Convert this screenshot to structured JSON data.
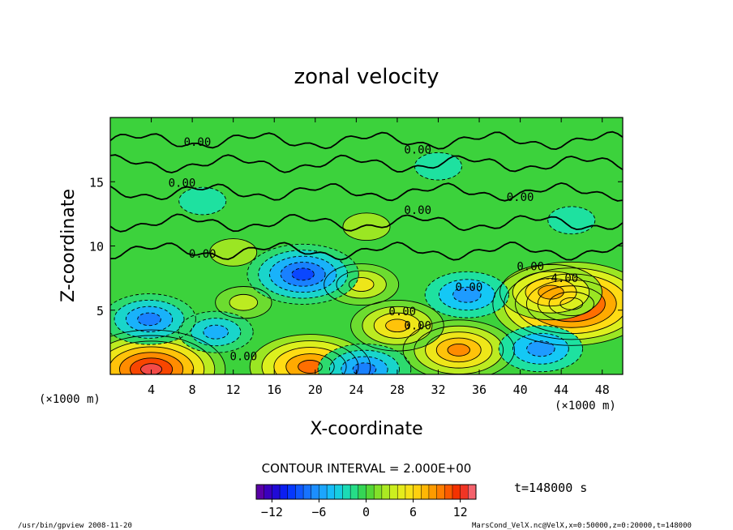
{
  "chart_data": {
    "type": "heatmap",
    "title": "zonal velocity",
    "xlabel": "X-coordinate",
    "ylabel": "Z-coordinate",
    "x_unit": "(×1000 m)",
    "y_unit": "(×1000 m)",
    "xlim": [
      0,
      50
    ],
    "ylim": [
      0,
      20
    ],
    "x_ticks": [
      "4",
      "8",
      "12",
      "16",
      "20",
      "24",
      "28",
      "32",
      "36",
      "40",
      "44",
      "48"
    ],
    "y_ticks": [
      "5",
      "10",
      "15"
    ],
    "contour_interval_text": "CONTOUR INTERVAL = 2.000E+00",
    "contour_labels": [
      "0.00",
      "0.00",
      "0.00",
      "0.00",
      "0.00",
      "0.00",
      "0.00",
      "0.00",
      "0.00",
      "0.00",
      "0.00",
      "-4.00"
    ],
    "time_label": "t=148000 s",
    "colorbar": {
      "range": [
        -14,
        14
      ],
      "tick_values": [
        -12,
        -6,
        0,
        6,
        12
      ],
      "tick_labels": [
        "−12",
        "−6",
        "0",
        "6",
        "12"
      ]
    },
    "features": [
      {
        "x": 4,
        "z": 0.4,
        "value": 13
      },
      {
        "x": 19.5,
        "z": 0.6,
        "value": 10
      },
      {
        "x": 45,
        "z": 5.5,
        "value": 14
      },
      {
        "x": 43,
        "z": 6.4,
        "value": 8
      },
      {
        "x": 34,
        "z": 1.9,
        "value": 9
      },
      {
        "x": 28,
        "z": 3.8,
        "value": 7
      },
      {
        "x": 24.5,
        "z": 7.0,
        "value": 5
      },
      {
        "x": 13,
        "z": 5.6,
        "value": 3
      },
      {
        "x": 18.8,
        "z": 7.8,
        "value": -9
      },
      {
        "x": 34.8,
        "z": 6.2,
        "value": -6
      },
      {
        "x": 3.8,
        "z": 4.3,
        "value": -7
      },
      {
        "x": 10.3,
        "z": 3.3,
        "value": -5
      },
      {
        "x": 42,
        "z": 2.0,
        "value": -6
      },
      {
        "x": 24.8,
        "z": 0.4,
        "value": -7
      },
      {
        "x": 9,
        "z": 13.5,
        "value": -2
      },
      {
        "x": 32,
        "z": 16.2,
        "value": -2
      },
      {
        "x": 25,
        "z": 11.5,
        "value": 2
      },
      {
        "x": 12,
        "z": 9.5,
        "value": 2
      },
      {
        "x": 45,
        "z": 12,
        "value": -2
      }
    ]
  },
  "footer": {
    "left": "/usr/bin/gpview   2008-11-20",
    "right": "MarsCond_VelX.nc@VelX,x=0:50000,z=0:20000,t=148000"
  }
}
